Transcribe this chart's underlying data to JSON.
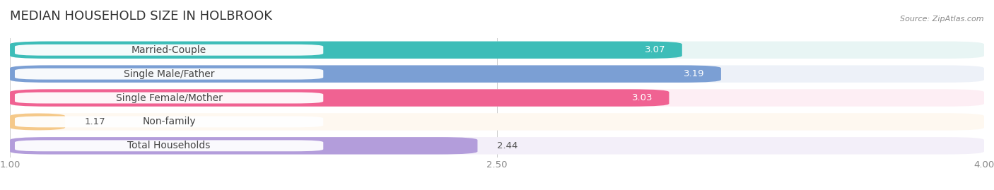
{
  "title": "MEDIAN HOUSEHOLD SIZE IN HOLBROOK",
  "source": "Source: ZipAtlas.com",
  "categories": [
    "Married-Couple",
    "Single Male/Father",
    "Single Female/Mother",
    "Non-family",
    "Total Households"
  ],
  "values": [
    3.07,
    3.19,
    3.03,
    1.17,
    2.44
  ],
  "bar_colors": [
    "#3dbdb8",
    "#7b9fd4",
    "#f06292",
    "#f5c98a",
    "#b39ddb"
  ],
  "bg_colors": [
    "#e8f5f4",
    "#edf1f8",
    "#fdeef4",
    "#fef8f0",
    "#f3eff9"
  ],
  "xmin": 1.0,
  "xmax": 4.0,
  "xticks": [
    1.0,
    2.5,
    4.0
  ],
  "label_fontsize": 10,
  "value_fontsize": 9.5,
  "title_fontsize": 13,
  "bar_height": 0.72,
  "bar_gap": 0.28,
  "background_color": "#ffffff"
}
